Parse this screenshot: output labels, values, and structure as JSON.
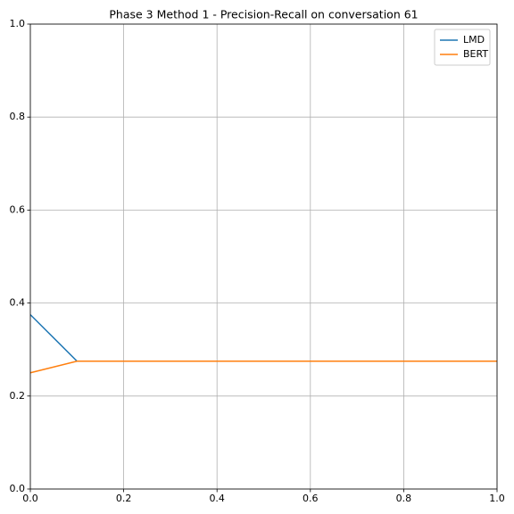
{
  "chart_data": {
    "type": "line",
    "title": "Phase 3 Method 1 - Precision-Recall on conversation 61",
    "x": [
      0,
      0.1,
      1
    ],
    "series": [
      {
        "name": "LMD",
        "color": "#1f77b4",
        "values": [
          0.375,
          0.275,
          0.275
        ]
      },
      {
        "name": "BERT",
        "color": "#ff7f0e",
        "values": [
          0.25,
          0.275,
          0.275
        ]
      }
    ],
    "xlim": [
      0,
      1
    ],
    "ylim": [
      0,
      1
    ],
    "xticks": [
      {
        "value": 0,
        "label": "0.0"
      },
      0.2,
      0.4,
      0.6,
      0.8,
      {
        "value": 1,
        "label": "1.0"
      }
    ],
    "yticks": [
      {
        "value": 0,
        "label": "0.0"
      },
      0.2,
      0.4,
      0.6,
      0.8,
      {
        "value": 1,
        "label": "1.0"
      }
    ],
    "grid": true,
    "legend": "upper right"
  }
}
